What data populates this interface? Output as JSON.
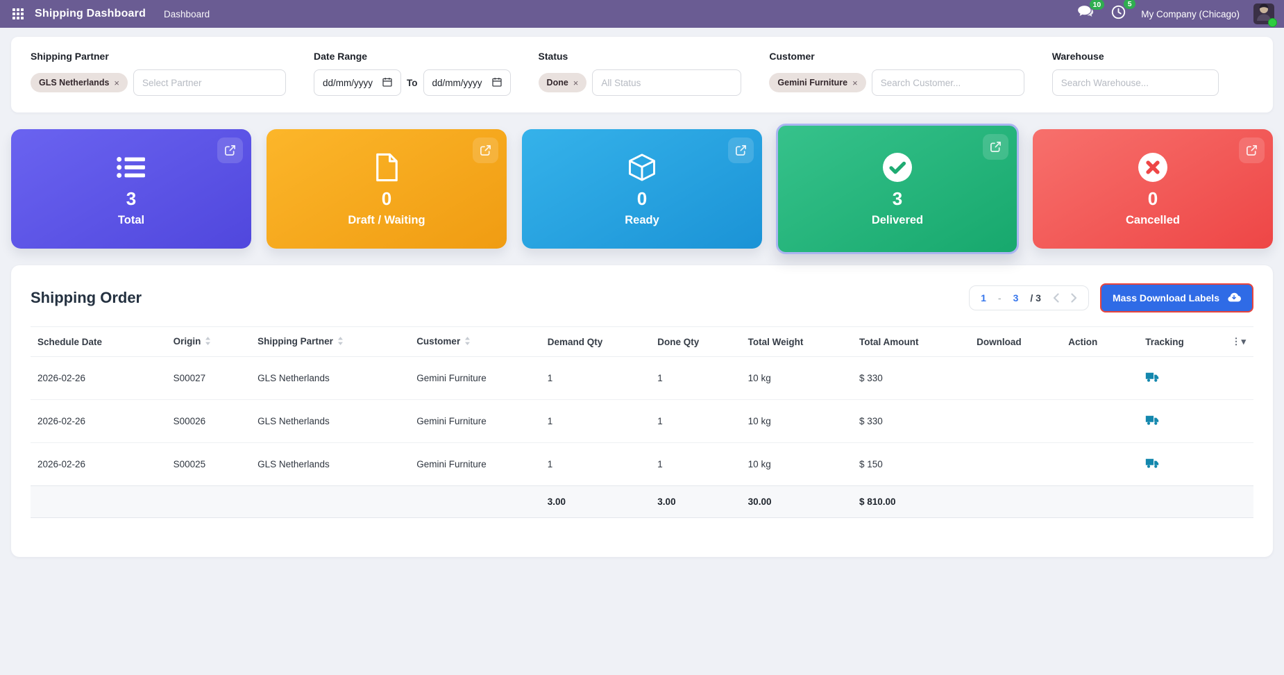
{
  "topbar": {
    "app_title": "Shipping Dashboard",
    "menu_item": "Dashboard",
    "messages_badge": "10",
    "activities_badge": "5",
    "company": "My Company (Chicago)"
  },
  "filters": {
    "shipping_partner": {
      "label": "Shipping Partner",
      "tag": "GLS Netherlands",
      "tag_remove_icon": "×",
      "placeholder": "Select Partner"
    },
    "date_range": {
      "label": "Date Range",
      "from_value": "dd/mm/yyyy",
      "separator": "To",
      "to_value": "dd/mm/yyyy"
    },
    "status": {
      "label": "Status",
      "tag": "Done",
      "tag_remove_icon": "×",
      "placeholder": "All Status"
    },
    "customer": {
      "label": "Customer",
      "tag": "Gemini Furniture",
      "tag_remove_icon": "×",
      "placeholder": "Search Customer..."
    },
    "warehouse": {
      "label": "Warehouse",
      "placeholder": "Search Warehouse..."
    }
  },
  "cards": [
    {
      "label": "Total",
      "value": "3",
      "icon": "list-icon",
      "color": "#5a52e0"
    },
    {
      "label": "Draft / Waiting",
      "value": "0",
      "icon": "file-icon",
      "color": "#f6a41c"
    },
    {
      "label": "Ready",
      "value": "0",
      "icon": "cube-icon",
      "color": "#28a5e2"
    },
    {
      "label": "Delivered",
      "value": "3",
      "icon": "check-circle-icon",
      "color": "#27b57e",
      "selected": true,
      "selection_border_color": "#aab5f1"
    },
    {
      "label": "Cancelled",
      "value": "0",
      "icon": "x-circle-icon",
      "color": "#f25a57"
    }
  ],
  "orders": {
    "title": "Shipping Order",
    "pager": {
      "start": "1",
      "dash": "-",
      "end": "3",
      "total": "/ 3"
    },
    "mass_download": {
      "label": "Mass Download Labels",
      "icon": "cloud-download-icon",
      "accent": "#2f6be6",
      "highlight_border": "#e8443c"
    },
    "table": {
      "headers": [
        {
          "label": "Schedule Date",
          "sortable": false
        },
        {
          "label": "Origin",
          "sortable": true
        },
        {
          "label": "Shipping Partner",
          "sortable": true
        },
        {
          "label": "Customer",
          "sortable": true
        },
        {
          "label": "Demand Qty",
          "sortable": false
        },
        {
          "label": "Done Qty",
          "sortable": false
        },
        {
          "label": "Total Weight",
          "sortable": false
        },
        {
          "label": "Total Amount",
          "sortable": false
        },
        {
          "label": "Download",
          "sortable": false
        },
        {
          "label": "Action",
          "sortable": false
        },
        {
          "label": "Tracking",
          "sortable": false
        }
      ],
      "rows": [
        {
          "schedule_date": "2026-02-26",
          "origin": "S00027",
          "shipping_partner": "GLS Netherlands",
          "customer": "Gemini Furniture",
          "demand_qty": "1",
          "done_qty": "1",
          "total_weight": "10 kg",
          "total_amount": "$ 330"
        },
        {
          "schedule_date": "2026-02-26",
          "origin": "S00026",
          "shipping_partner": "GLS Netherlands",
          "customer": "Gemini Furniture",
          "demand_qty": "1",
          "done_qty": "1",
          "total_weight": "10 kg",
          "total_amount": "$ 330"
        },
        {
          "schedule_date": "2026-02-26",
          "origin": "S00025",
          "shipping_partner": "GLS Netherlands",
          "customer": "Gemini Furniture",
          "demand_qty": "1",
          "done_qty": "1",
          "total_weight": "10 kg",
          "total_amount": "$ 150"
        }
      ],
      "totals": {
        "demand_qty": "3.00",
        "done_qty": "3.00",
        "total_weight": "30.00",
        "total_amount": "$ 810.00"
      },
      "tracking_icon_color": "#1387ad"
    }
  }
}
